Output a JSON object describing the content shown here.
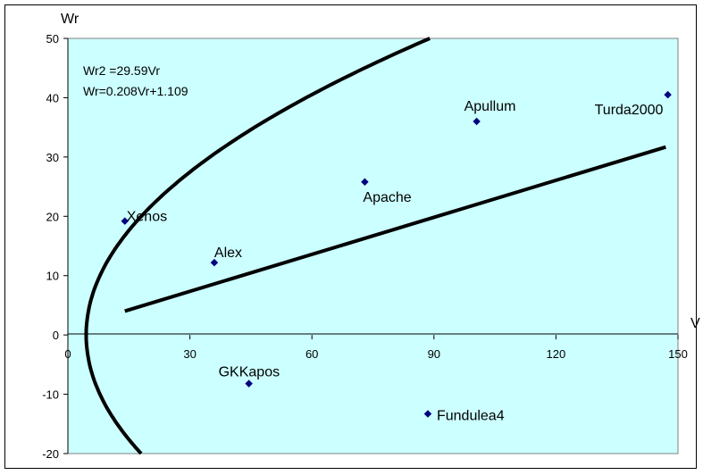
{
  "chart_data": {
    "type": "scatter",
    "xlabel": "V",
    "ylabel": "Wr",
    "xlim": [
      0,
      150
    ],
    "ylim": [
      -20,
      50
    ],
    "x_ticks": [
      0,
      30,
      60,
      90,
      120,
      150
    ],
    "y_ticks": [
      -20,
      -10,
      0,
      10,
      20,
      30,
      40,
      50
    ],
    "grid": false,
    "background_color": "#ccffff",
    "marker_color": "#000080",
    "line_color": "#000000",
    "points": [
      {
        "name": "Xenos",
        "x": 14,
        "y": 19.2
      },
      {
        "name": "Alex",
        "x": 36,
        "y": 12.2
      },
      {
        "name": "GKKapos",
        "x": 44.5,
        "y": -8.2
      },
      {
        "name": "Apache",
        "x": 73,
        "y": 25.8
      },
      {
        "name": "Apullum",
        "x": 100.5,
        "y": 36
      },
      {
        "name": "Turda2000",
        "x": 147.5,
        "y": 40.5
      },
      {
        "name": "Fundulea4",
        "x": 88.5,
        "y": -13.3
      }
    ],
    "annotations": [
      "Wr2 =29.59Vr",
      "Wr=0.208Vr+1.109"
    ],
    "curves": [
      {
        "kind": "parabola",
        "equation": "Wr2 =29.59Vr",
        "x_vertex": 4.5,
        "y_range": [
          -20,
          50
        ]
      },
      {
        "kind": "linear",
        "equation": "Wr=0.208Vr+1.109",
        "slope": 0.208,
        "intercept": 1.109,
        "x_range": [
          14,
          147
        ]
      }
    ]
  }
}
